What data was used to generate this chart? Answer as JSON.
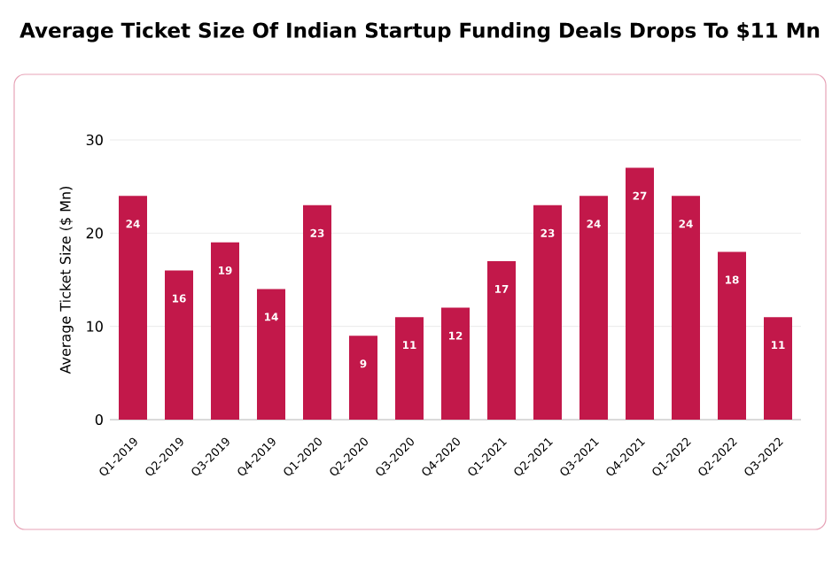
{
  "chart_data": {
    "type": "bar",
    "title": "Average Ticket Size Of Indian Startup Funding Deals Drops To $11 Mn",
    "ylabel": "Average Ticket Size ($ Mn)",
    "categories": [
      "Q1-2019",
      "Q2-2019",
      "Q3-2019",
      "Q4-2019",
      "Q1-2020",
      "Q2-2020",
      "Q3-2020",
      "Q4-2020",
      "Q1-2021",
      "Q2-2021",
      "Q3-2021",
      "Q4-2021",
      "Q1-2022",
      "Q2-2022",
      "Q3-2022"
    ],
    "values": [
      24,
      16,
      19,
      14,
      23,
      9,
      11,
      12,
      17,
      23,
      24,
      27,
      24,
      18,
      11
    ],
    "data_labels": true,
    "color": "#c2184a",
    "ylim": [
      0,
      30
    ],
    "yticks": [
      0,
      10,
      20,
      30
    ],
    "grid": "y"
  }
}
